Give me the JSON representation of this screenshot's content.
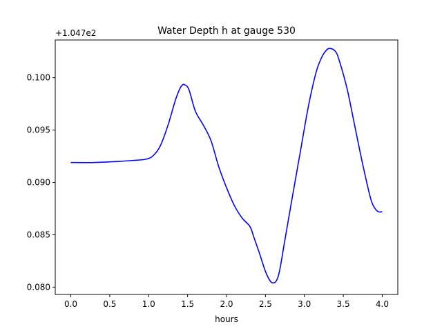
{
  "chart_data": {
    "type": "line",
    "title": "Water Depth h at gauge 530",
    "xlabel": "hours",
    "ylabel": "",
    "offset_label": "+1.047e2",
    "xlim": [
      -0.2,
      4.2
    ],
    "ylim": [
      0.0793,
      0.1036
    ],
    "x_ticks": [
      {
        "value": 0.0,
        "label": "0.0"
      },
      {
        "value": 0.5,
        "label": "0.5"
      },
      {
        "value": 1.0,
        "label": "1.0"
      },
      {
        "value": 1.5,
        "label": "1.5"
      },
      {
        "value": 2.0,
        "label": "2.0"
      },
      {
        "value": 2.5,
        "label": "2.5"
      },
      {
        "value": 3.0,
        "label": "3.0"
      },
      {
        "value": 3.5,
        "label": "3.5"
      },
      {
        "value": 4.0,
        "label": "4.0"
      }
    ],
    "y_ticks": [
      {
        "value": 0.08,
        "label": "0.080"
      },
      {
        "value": 0.085,
        "label": "0.085"
      },
      {
        "value": 0.09,
        "label": "0.090"
      },
      {
        "value": 0.095,
        "label": "0.095"
      },
      {
        "value": 0.1,
        "label": "0.100"
      }
    ],
    "grid": false,
    "series": [
      {
        "color": "#0000ff",
        "x": [
          0.0,
          0.3,
          0.6,
          0.8,
          0.95,
          1.05,
          1.15,
          1.25,
          1.35,
          1.42,
          1.47,
          1.52,
          1.6,
          1.7,
          1.8,
          1.9,
          2.0,
          2.1,
          2.2,
          2.3,
          2.35,
          2.42,
          2.5,
          2.56,
          2.6,
          2.64,
          2.68,
          2.75,
          2.85,
          2.95,
          3.05,
          3.15,
          3.22,
          3.28,
          3.33,
          3.4,
          3.45,
          3.55,
          3.65,
          3.75,
          3.85,
          3.9,
          3.95,
          4.0
        ],
        "y": [
          0.0919,
          0.0919,
          0.092,
          0.0921,
          0.0922,
          0.0925,
          0.0935,
          0.0955,
          0.098,
          0.0992,
          0.0993,
          0.0988,
          0.0968,
          0.0955,
          0.094,
          0.0915,
          0.0895,
          0.0878,
          0.0866,
          0.0858,
          0.0848,
          0.0833,
          0.0815,
          0.0806,
          0.0804,
          0.0806,
          0.0815,
          0.0845,
          0.0888,
          0.093,
          0.0972,
          0.1005,
          0.1019,
          0.1026,
          0.1028,
          0.1025,
          0.1016,
          0.0989,
          0.0953,
          0.0917,
          0.0885,
          0.0876,
          0.0872,
          0.0872
        ]
      }
    ]
  }
}
